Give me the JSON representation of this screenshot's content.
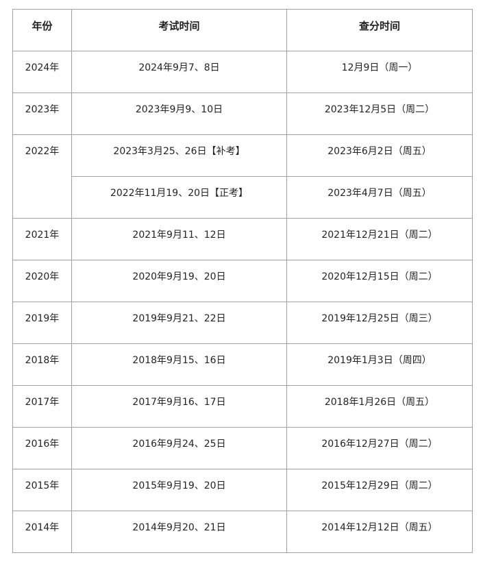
{
  "headers": [
    "年份",
    "考试时间",
    "查分时间"
  ],
  "rows": [
    {
      "year": "2024年",
      "exam": "2024年9月7、8日",
      "score": "12月9日（周一）"
    },
    {
      "year": "2023年",
      "exam": "2023年9月9、10日",
      "score": "2023年12月5日（周二）"
    },
    {
      "year": "2022年",
      "exam": "2023年3月25、26日【补考】",
      "score": "2023年6月2日（周五）"
    },
    {
      "year": "",
      "exam": "2022年11月19、20日【正考】",
      "score": "2023年4月7日（周五）"
    },
    {
      "year": "2021年",
      "exam": "2021年9月11、12日",
      "score": "2021年12月21日（周二）"
    },
    {
      "year": "2020年",
      "exam": "2020年9月19、20日",
      "score": "2020年12月15日（周二）"
    },
    {
      "year": "2019年",
      "exam": "2019年9月21、22日",
      "score": "2019年12月25日（周三）"
    },
    {
      "year": "2018年",
      "exam": "2018年9月15、16日",
      "score": "2019年1月3日（周四）"
    },
    {
      "year": "2017年",
      "exam": "2017年9月16、17日",
      "score": "2018年1月26日（周五）"
    },
    {
      "year": "2016年",
      "exam": "2016年9月24、25日",
      "score": "2016年12月27日（周二）"
    },
    {
      "year": "2015年",
      "exam": "2015年9月19、20日",
      "score": "2015年12月29日（周二）"
    },
    {
      "year": "2014年",
      "exam": "2014年9月20、21日",
      "score": "2014年12月12日（周五）"
    }
  ]
}
